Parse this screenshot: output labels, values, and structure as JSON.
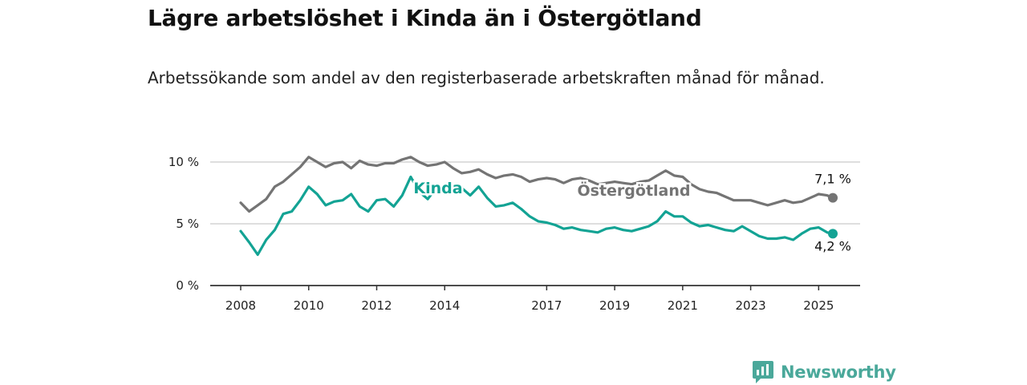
{
  "title": "Lägre arbetslöshet i Kinda än i Östergötland",
  "subtitle": "Arbetssökande som andel av den registerbaserade arbetskraften månad för månad.",
  "brand": {
    "name": "Newsworthy",
    "icon": "newsworthy-logo-icon"
  },
  "colors": {
    "kinda": "#13a394",
    "ostergotland": "#747474",
    "grid": "#d4d4d4",
    "axis": "#333333"
  },
  "chart_data": {
    "type": "line",
    "x_ticks": [
      "2008",
      "2010",
      "2012",
      "2014",
      "2017",
      "2019",
      "2021",
      "2023",
      "2025"
    ],
    "y_ticks": [
      "0 %",
      "5 %",
      "10 %"
    ],
    "ylim": [
      0,
      10
    ],
    "x_range": [
      "2008-01",
      "2025-06"
    ],
    "grid": true,
    "series": [
      {
        "name": "Östergötland",
        "label_position": "inline",
        "end_label": "7,1 %",
        "points": [
          [
            "2008-01",
            6.7
          ],
          [
            "2008-04",
            6.0
          ],
          [
            "2008-07",
            6.5
          ],
          [
            "2008-10",
            7.0
          ],
          [
            "2009-01",
            8.0
          ],
          [
            "2009-04",
            8.4
          ],
          [
            "2009-07",
            9.0
          ],
          [
            "2009-10",
            9.6
          ],
          [
            "2010-01",
            10.4
          ],
          [
            "2010-04",
            10.0
          ],
          [
            "2010-07",
            9.6
          ],
          [
            "2010-10",
            9.9
          ],
          [
            "2011-01",
            10.0
          ],
          [
            "2011-04",
            9.5
          ],
          [
            "2011-07",
            10.1
          ],
          [
            "2011-10",
            9.8
          ],
          [
            "2012-01",
            9.7
          ],
          [
            "2012-04",
            9.9
          ],
          [
            "2012-07",
            9.9
          ],
          [
            "2012-10",
            10.2
          ],
          [
            "2013-01",
            10.4
          ],
          [
            "2013-04",
            10.0
          ],
          [
            "2013-07",
            9.7
          ],
          [
            "2013-10",
            9.8
          ],
          [
            "2014-01",
            10.0
          ],
          [
            "2014-04",
            9.5
          ],
          [
            "2014-07",
            9.1
          ],
          [
            "2014-10",
            9.2
          ],
          [
            "2015-01",
            9.4
          ],
          [
            "2015-04",
            9.0
          ],
          [
            "2015-07",
            8.7
          ],
          [
            "2015-10",
            8.9
          ],
          [
            "2016-01",
            9.0
          ],
          [
            "2016-04",
            8.8
          ],
          [
            "2016-07",
            8.4
          ],
          [
            "2016-10",
            8.6
          ],
          [
            "2017-01",
            8.7
          ],
          [
            "2017-04",
            8.6
          ],
          [
            "2017-07",
            8.3
          ],
          [
            "2017-10",
            8.6
          ],
          [
            "2018-01",
            8.7
          ],
          [
            "2018-04",
            8.5
          ],
          [
            "2018-07",
            8.2
          ],
          [
            "2018-10",
            8.3
          ],
          [
            "2019-01",
            8.4
          ],
          [
            "2019-04",
            8.3
          ],
          [
            "2019-07",
            8.2
          ],
          [
            "2019-10",
            8.4
          ],
          [
            "2020-01",
            8.5
          ],
          [
            "2020-04",
            8.9
          ],
          [
            "2020-07",
            9.3
          ],
          [
            "2020-10",
            8.9
          ],
          [
            "2021-01",
            8.8
          ],
          [
            "2021-04",
            8.2
          ],
          [
            "2021-07",
            7.8
          ],
          [
            "2021-10",
            7.6
          ],
          [
            "2022-01",
            7.5
          ],
          [
            "2022-04",
            7.2
          ],
          [
            "2022-07",
            6.9
          ],
          [
            "2022-10",
            6.9
          ],
          [
            "2023-01",
            6.9
          ],
          [
            "2023-04",
            6.7
          ],
          [
            "2023-07",
            6.5
          ],
          [
            "2023-10",
            6.7
          ],
          [
            "2024-01",
            6.9
          ],
          [
            "2024-04",
            6.7
          ],
          [
            "2024-07",
            6.8
          ],
          [
            "2024-10",
            7.1
          ],
          [
            "2025-01",
            7.4
          ],
          [
            "2025-04",
            7.3
          ],
          [
            "2025-06",
            7.1
          ]
        ]
      },
      {
        "name": "Kinda",
        "label_position": "inline",
        "end_label": "4,2 %",
        "points": [
          [
            "2008-01",
            4.4
          ],
          [
            "2008-04",
            3.5
          ],
          [
            "2008-07",
            2.5
          ],
          [
            "2008-10",
            3.7
          ],
          [
            "2009-01",
            4.5
          ],
          [
            "2009-04",
            5.8
          ],
          [
            "2009-07",
            6.0
          ],
          [
            "2009-10",
            6.9
          ],
          [
            "2010-01",
            8.0
          ],
          [
            "2010-04",
            7.4
          ],
          [
            "2010-07",
            6.5
          ],
          [
            "2010-10",
            6.8
          ],
          [
            "2011-01",
            6.9
          ],
          [
            "2011-04",
            7.4
          ],
          [
            "2011-07",
            6.4
          ],
          [
            "2011-10",
            6.0
          ],
          [
            "2012-01",
            6.9
          ],
          [
            "2012-04",
            7.0
          ],
          [
            "2012-07",
            6.4
          ],
          [
            "2012-10",
            7.3
          ],
          [
            "2013-01",
            8.8
          ],
          [
            "2013-04",
            7.6
          ],
          [
            "2013-07",
            7.0
          ],
          [
            "2013-10",
            7.9
          ],
          [
            "2014-01",
            7.7
          ],
          [
            "2014-04",
            7.5
          ],
          [
            "2014-07",
            7.9
          ],
          [
            "2014-10",
            7.3
          ],
          [
            "2015-01",
            8.0
          ],
          [
            "2015-04",
            7.1
          ],
          [
            "2015-07",
            6.4
          ],
          [
            "2015-10",
            6.5
          ],
          [
            "2016-01",
            6.7
          ],
          [
            "2016-04",
            6.2
          ],
          [
            "2016-07",
            5.6
          ],
          [
            "2016-10",
            5.2
          ],
          [
            "2017-01",
            5.1
          ],
          [
            "2017-04",
            4.9
          ],
          [
            "2017-07",
            4.6
          ],
          [
            "2017-10",
            4.7
          ],
          [
            "2018-01",
            4.5
          ],
          [
            "2018-04",
            4.4
          ],
          [
            "2018-07",
            4.3
          ],
          [
            "2018-10",
            4.6
          ],
          [
            "2019-01",
            4.7
          ],
          [
            "2019-04",
            4.5
          ],
          [
            "2019-07",
            4.4
          ],
          [
            "2019-10",
            4.6
          ],
          [
            "2020-01",
            4.8
          ],
          [
            "2020-04",
            5.2
          ],
          [
            "2020-07",
            6.0
          ],
          [
            "2020-10",
            5.6
          ],
          [
            "2021-01",
            5.6
          ],
          [
            "2021-04",
            5.1
          ],
          [
            "2021-07",
            4.8
          ],
          [
            "2021-10",
            4.9
          ],
          [
            "2022-01",
            4.7
          ],
          [
            "2022-04",
            4.5
          ],
          [
            "2022-07",
            4.4
          ],
          [
            "2022-10",
            4.8
          ],
          [
            "2023-01",
            4.4
          ],
          [
            "2023-04",
            4.0
          ],
          [
            "2023-07",
            3.8
          ],
          [
            "2023-10",
            3.8
          ],
          [
            "2024-01",
            3.9
          ],
          [
            "2024-04",
            3.7
          ],
          [
            "2024-07",
            4.2
          ],
          [
            "2024-10",
            4.6
          ],
          [
            "2025-01",
            4.7
          ],
          [
            "2025-04",
            4.3
          ],
          [
            "2025-06",
            4.2
          ]
        ]
      }
    ]
  }
}
